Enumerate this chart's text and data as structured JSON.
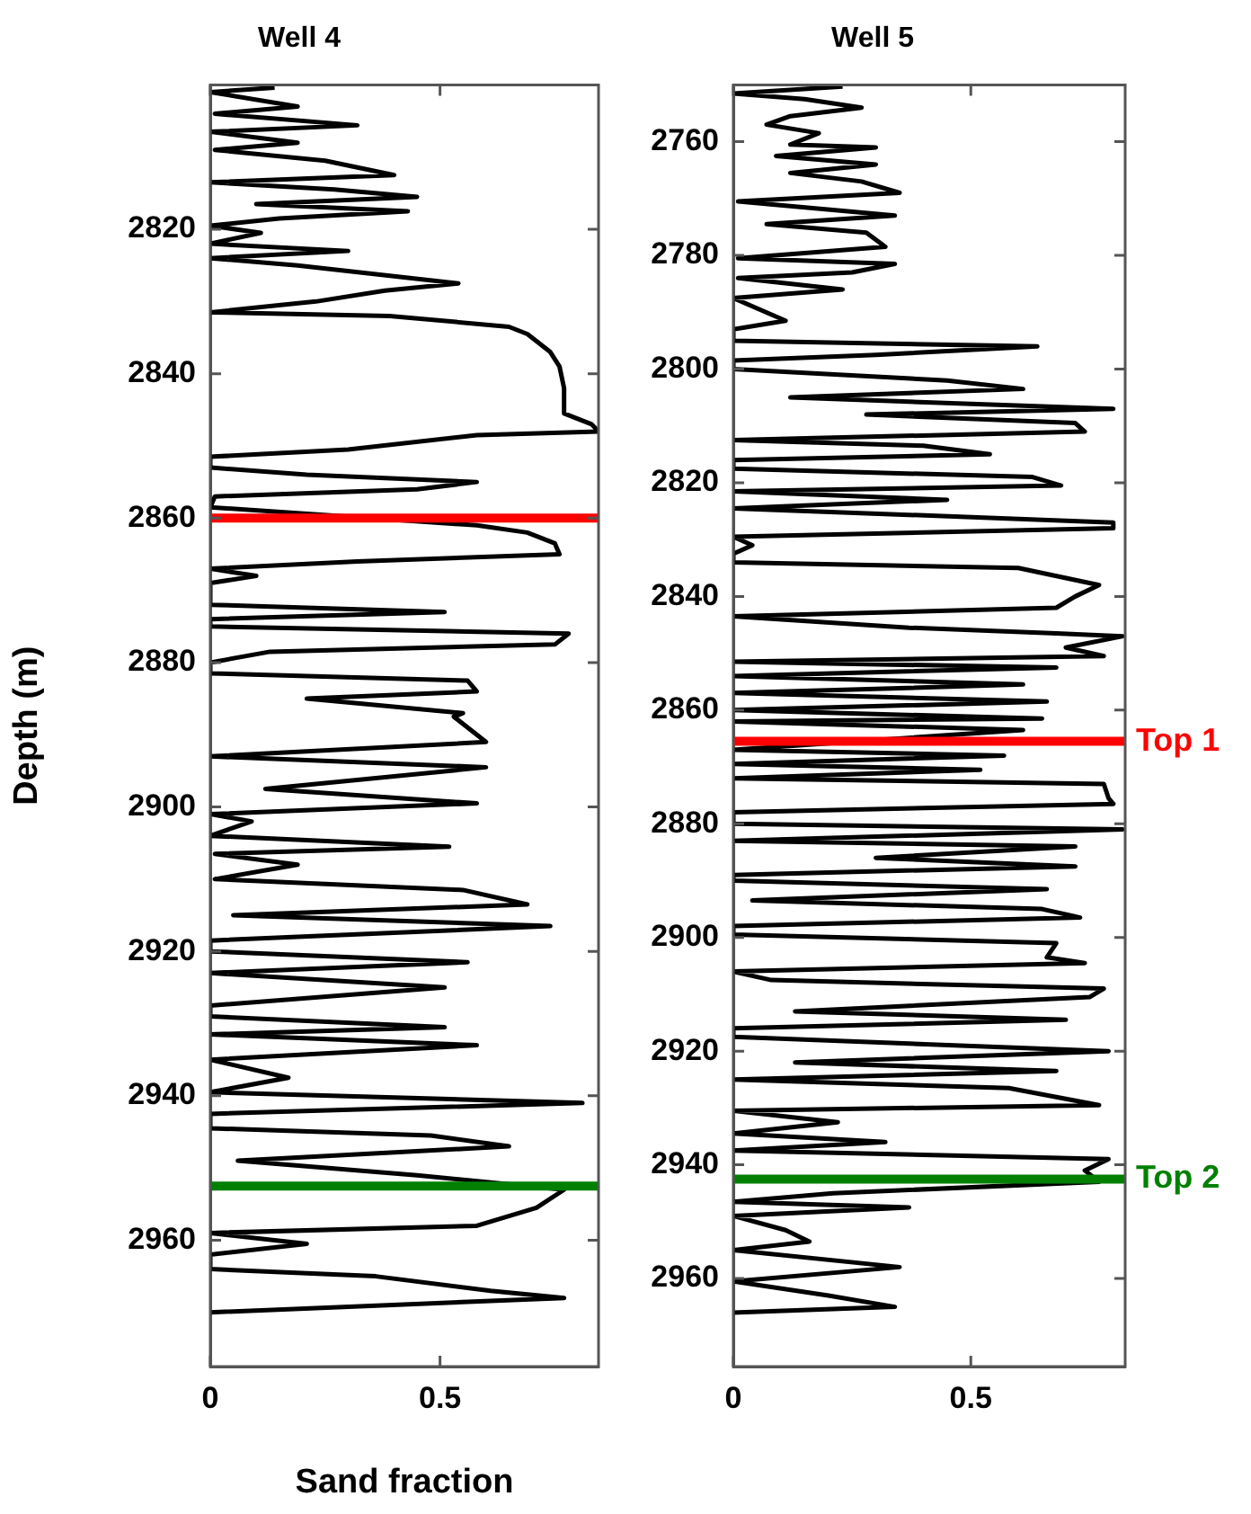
{
  "chart_data": [
    {
      "type": "line",
      "title": "Well 4",
      "xlabel": "Sand fraction",
      "ylabel": "Depth (m)",
      "orientation": "horizontal",
      "grid": false,
      "xlim": [
        0,
        0.845
      ],
      "xticks": [
        {
          "value": 0,
          "label": "0"
        },
        0.5
      ],
      "ylim": [
        2977.5,
        2800
      ],
      "yticks": [
        2820,
        2840,
        2860,
        2880,
        2900,
        2920,
        2940,
        2960
      ],
      "ref_lines": [
        {
          "axis": "y",
          "value": 2860,
          "color": "#ff0000"
        },
        {
          "axis": "y",
          "value": 2952.5,
          "color": "#008000"
        }
      ],
      "series": [
        {
          "color": "#000000",
          "x": [
            2800.4,
            2801,
            2803,
            2804,
            2805.6,
            2806.5,
            2808,
            2809,
            2810.5,
            2812.5,
            2813.5,
            2814.5,
            2815.5,
            2816.5,
            2817.5,
            2818.5,
            2819.5,
            2820.5,
            2822,
            2823,
            2824,
            2825,
            2827.5,
            2828.5,
            2830,
            2831.5,
            2832,
            2833.5,
            2834.5,
            2837,
            2839,
            2842,
            2845.5,
            2847,
            2848,
            2848.5,
            2850.5,
            2851.5,
            2853,
            2854,
            2855,
            2856,
            2857,
            2858.5,
            2861,
            2862,
            2863.5,
            2865,
            2866,
            2867,
            2868,
            2869,
            2872,
            2873,
            2874,
            2875,
            2876,
            2877.5,
            2878.5,
            2880,
            2881.5,
            2882.5,
            2884,
            2885,
            2887,
            2887.5,
            2891,
            2893,
            2894.5,
            2897.5,
            2899.5,
            2901,
            2902,
            2904,
            2905.5,
            2906.5,
            2908,
            2910,
            2911.5,
            2913.5,
            2915,
            2916.5,
            2918.5,
            2920,
            2921.5,
            2923,
            2925,
            2927.5,
            2929,
            2930.5,
            2931.5,
            2933,
            2935,
            2937.5,
            2939.5,
            2941,
            2942.5,
            2944.5,
            2945.5,
            2947,
            2949,
            2951,
            2953,
            2955.5,
            2958,
            2959,
            2960.5,
            2962,
            2964,
            2965,
            2967,
            2968,
            2970
          ],
          "values": [
            0.14,
            0,
            0.19,
            0.01,
            0.32,
            0,
            0.19,
            0.01,
            0.25,
            0.4,
            0,
            0.27,
            0.45,
            0.1,
            0.43,
            0.15,
            0,
            0.11,
            0,
            0.3,
            0,
            0.19,
            0.54,
            0.38,
            0.23,
            0,
            0.39,
            0.65,
            0.69,
            0.74,
            0.76,
            0.77,
            0.77,
            0.83,
            0.845,
            0.58,
            0.3,
            0,
            0,
            0.21,
            0.58,
            0.45,
            0.01,
            0,
            0.58,
            0.69,
            0.75,
            0.76,
            0.32,
            0,
            0.1,
            0,
            0,
            0.51,
            0,
            0,
            0.78,
            0.75,
            0.13,
            0,
            0,
            0.56,
            0.58,
            0.21,
            0.55,
            0.53,
            0.6,
            0,
            0.6,
            0.12,
            0.58,
            0,
            0.09,
            0,
            0.52,
            0.01,
            0.19,
            0.01,
            0.55,
            0.69,
            0.05,
            0.74,
            0,
            0,
            0.56,
            0,
            0.51,
            0,
            0,
            0.51,
            0,
            0.58,
            0,
            0.17,
            0,
            0.81,
            0,
            0,
            0.48,
            0.65,
            0.06,
            0.45,
            0.77,
            0.71,
            0.58,
            0,
            0.21,
            0,
            0,
            0.36,
            0.61,
            0.77,
            0
          ]
        }
      ]
    },
    {
      "type": "line",
      "title": "Well 5",
      "orientation": "horizontal",
      "grid": false,
      "xlim": [
        0,
        0.825
      ],
      "xticks": [
        {
          "value": 0,
          "label": "0"
        },
        0.5
      ],
      "ylim": [
        2975.5,
        2750
      ],
      "yticks": [
        2760,
        2780,
        2800,
        2820,
        2840,
        2860,
        2880,
        2900,
        2920,
        2940,
        2960
      ],
      "ref_lines": [
        {
          "axis": "y",
          "value": 2865.5,
          "label": "Top 1",
          "color": "#ff0000"
        },
        {
          "axis": "y",
          "value": 2942.5,
          "label": "Top 2",
          "color": "#008000"
        }
      ],
      "series": [
        {
          "color": "#000000",
          "x": [
            2750.3,
            2751.5,
            2752.5,
            2754,
            2755.5,
            2757,
            2758.5,
            2760.5,
            2761,
            2762.5,
            2764,
            2765.5,
            2767,
            2769,
            2770.5,
            2773,
            2774.5,
            2776,
            2778.5,
            2780.5,
            2781.5,
            2783,
            2784,
            2786,
            2787.5,
            2791.5,
            2793,
            2795,
            2796,
            2797.5,
            2798.5,
            2800,
            2802,
            2803.5,
            2805,
            2807,
            2808,
            2809.5,
            2811,
            2812.5,
            2813.5,
            2815,
            2816,
            2817.5,
            2819,
            2820.5,
            2821.5,
            2823,
            2824.5,
            2827,
            2828,
            2829.5,
            2831,
            2832.5,
            2834,
            2835,
            2838,
            2840,
            2842,
            2843.5,
            2845.5,
            2846.5,
            2847,
            2849,
            2850.5,
            2851.5,
            2852.5,
            2854,
            2855.5,
            2857,
            2858.5,
            2860,
            2861.5,
            2862,
            2863.5,
            2867,
            2868,
            2869.5,
            2870.5,
            2872,
            2873,
            2875.5,
            2876.5,
            2878,
            2880,
            2881,
            2883,
            2884,
            2886,
            2887.5,
            2889,
            2890,
            2891.5,
            2893.5,
            2895,
            2896.5,
            2898,
            2899.5,
            2901,
            2903.5,
            2904.5,
            2906,
            2907.5,
            2909,
            2910.5,
            2913,
            2914.5,
            2916,
            2917.5,
            2920,
            2922,
            2923.5,
            2925,
            2926.5,
            2929.5,
            2930.5,
            2932.5,
            2934.5,
            2936,
            2937.5,
            2939,
            2941,
            2943,
            2945,
            2946.5,
            2947.5,
            2949,
            2951.5,
            2953.5,
            2955,
            2958,
            2960.5,
            2963,
            2965,
            2966
          ],
          "values": [
            0.23,
            0,
            0.15,
            0.27,
            0.12,
            0.07,
            0.18,
            0.12,
            0.3,
            0.09,
            0.3,
            0.12,
            0.27,
            0.35,
            0.01,
            0.34,
            0.07,
            0.28,
            0.32,
            0.01,
            0.34,
            0.25,
            0.01,
            0.23,
            0,
            0.11,
            0,
            0,
            0.64,
            0.3,
            0,
            0,
            0.45,
            0.61,
            0.12,
            0.8,
            0.28,
            0.72,
            0.74,
            0,
            0.4,
            0.54,
            0,
            0,
            0.63,
            0.69,
            0,
            0.45,
            0,
            0.8,
            0.8,
            0,
            0.04,
            0,
            0,
            0.6,
            0.77,
            0.72,
            0.68,
            0,
            0.37,
            0.68,
            0.82,
            0.7,
            0.78,
            0,
            0.68,
            0,
            0.61,
            0,
            0.66,
            0,
            0.65,
            0,
            0.61,
            0,
            0.57,
            0,
            0.52,
            0,
            0.78,
            0.79,
            0.8,
            0,
            0,
            0.82,
            0,
            0.72,
            0.3,
            0.72,
            0,
            0,
            0.66,
            0.04,
            0.65,
            0.73,
            0,
            0,
            0.68,
            0.66,
            0.74,
            0,
            0.08,
            0.78,
            0.75,
            0.13,
            0.7,
            0,
            0,
            0.79,
            0.13,
            0.68,
            0,
            0.58,
            0.77,
            0,
            0.22,
            0,
            0.32,
            0,
            0.79,
            0.74,
            0.77,
            0.21,
            0,
            0.37,
            0,
            0.11,
            0.16,
            0,
            0.35,
            0,
            0.2,
            0.34,
            0
          ]
        }
      ]
    }
  ]
}
